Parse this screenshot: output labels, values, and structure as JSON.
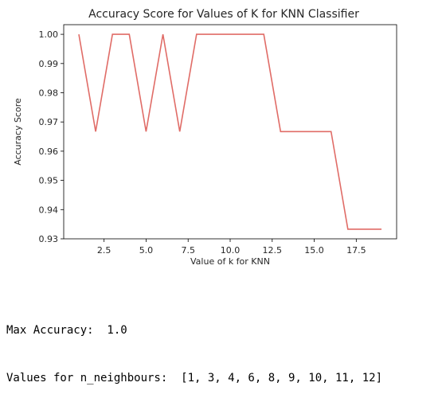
{
  "chart_data": {
    "type": "line",
    "title": "Accuracy Score for Values of K for KNN Classifier",
    "xlabel": "Value of k for KNN",
    "ylabel": "Accuracy Score",
    "x": [
      1,
      2,
      3,
      4,
      5,
      6,
      7,
      8,
      9,
      10,
      11,
      12,
      13,
      14,
      15,
      16,
      17,
      18,
      19
    ],
    "series": [
      {
        "name": "",
        "color": "#e06c67",
        "values": [
          1.0,
          0.9667,
          1.0,
          1.0,
          0.9667,
          1.0,
          0.9667,
          1.0,
          1.0,
          1.0,
          1.0,
          1.0,
          0.9667,
          0.9667,
          0.9667,
          0.9667,
          0.9333,
          0.9333,
          0.9333
        ]
      }
    ],
    "xlim": [
      0.1,
      19.9
    ],
    "ylim": [
      0.93,
      1.0033
    ],
    "xticks": [
      2.5,
      5.0,
      7.5,
      10.0,
      12.5,
      15.0,
      17.5
    ],
    "xtick_labels": [
      "2.5",
      "5.0",
      "7.5",
      "10.0",
      "12.5",
      "15.0",
      "17.5"
    ],
    "yticks": [
      0.93,
      0.94,
      0.95,
      0.96,
      0.97,
      0.98,
      0.99,
      1.0
    ],
    "ytick_labels": [
      "0.93",
      "0.94",
      "0.95",
      "0.96",
      "0.97",
      "0.98",
      "0.99",
      "1.00"
    ],
    "grid": false,
    "legend": "none"
  },
  "output": {
    "max_accuracy_line": "Max Accuracy:  1.0",
    "neighbours_line": "Values for n_neighbours:  [1, 3, 4, 6, 8, 9, 10, 11, 12]"
  }
}
